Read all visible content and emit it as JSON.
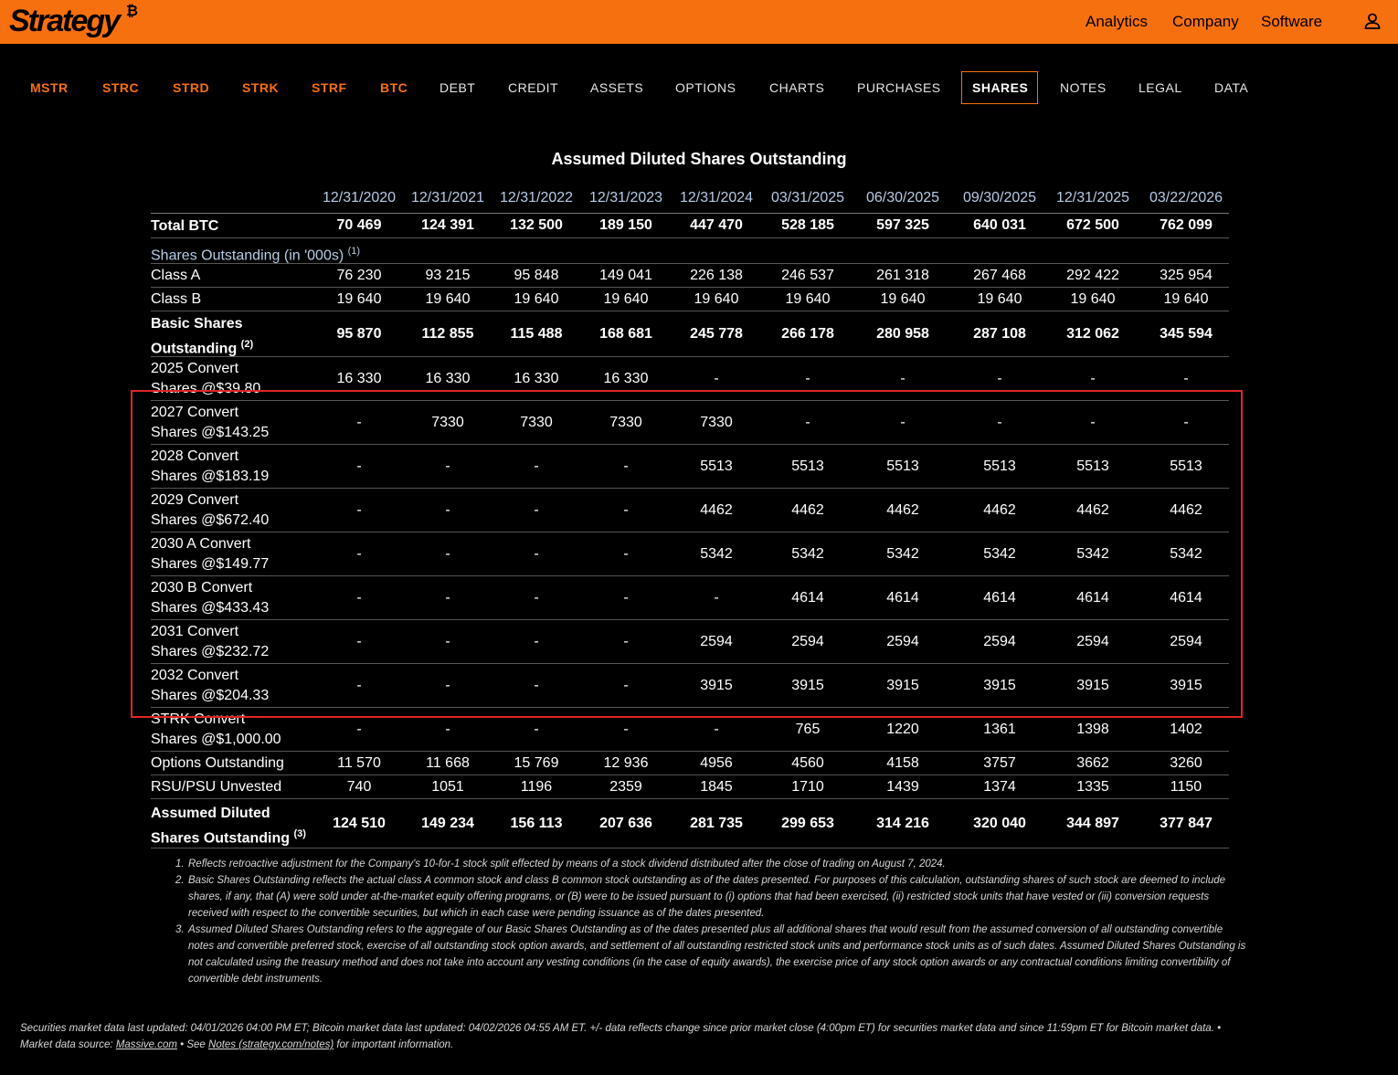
{
  "header": {
    "logo_text": "Strategy",
    "logo_symbol": "₿",
    "nav": [
      "Analytics",
      "Company",
      "Software"
    ],
    "user_icon": "user-icon",
    "brand_color": "#f7700f"
  },
  "tabs": [
    {
      "label": "MSTR",
      "style": "orange"
    },
    {
      "label": "STRC",
      "style": "orange"
    },
    {
      "label": "STRD",
      "style": "orange"
    },
    {
      "label": "STRK",
      "style": "orange"
    },
    {
      "label": "STRF",
      "style": "orange"
    },
    {
      "label": "BTC",
      "style": "orange"
    },
    {
      "label": "DEBT",
      "style": "plain"
    },
    {
      "label": "CREDIT",
      "style": "plain"
    },
    {
      "label": "ASSETS",
      "style": "plain"
    },
    {
      "label": "OPTIONS",
      "style": "plain"
    },
    {
      "label": "CHARTS",
      "style": "plain"
    },
    {
      "label": "PURCHASES",
      "style": "plain"
    },
    {
      "label": "SHARES",
      "style": "active"
    },
    {
      "label": "NOTES",
      "style": "plain"
    },
    {
      "label": "LEGAL",
      "style": "plain"
    },
    {
      "label": "DATA",
      "style": "plain"
    }
  ],
  "table": {
    "title": "Assumed Diluted Shares Outstanding",
    "columns": [
      "12/31/2020",
      "12/31/2021",
      "12/31/2022",
      "12/31/2023",
      "12/31/2024",
      "03/31/2025",
      "06/30/2025",
      "09/30/2025",
      "12/31/2025",
      "03/22/2026"
    ],
    "rows": [
      {
        "label": "Total BTC",
        "bold": true,
        "values": [
          "70 469",
          "124 391",
          "132 500",
          "189 150",
          "447 470",
          "528 185",
          "597 325",
          "640 031",
          "672 500",
          "762 099"
        ]
      },
      {
        "label": "Shares Outstanding (in '000s)",
        "sup": "(1)",
        "section": true,
        "values": []
      },
      {
        "label": "Class A",
        "values": [
          "76 230",
          "93 215",
          "95 848",
          "149 041",
          "226 138",
          "246 537",
          "261 318",
          "267 468",
          "292 422",
          "325 954"
        ]
      },
      {
        "label": "Class B",
        "values": [
          "19 640",
          "19 640",
          "19 640",
          "19 640",
          "19 640",
          "19 640",
          "19 640",
          "19 640",
          "19 640",
          "19 640"
        ]
      },
      {
        "label": "Basic Shares",
        "label2": "Outstanding",
        "sup": "(2)",
        "bold": true,
        "values": [
          "95 870",
          "112 855",
          "115 488",
          "168 681",
          "245 778",
          "266 178",
          "280 958",
          "287 108",
          "312 062",
          "345 594"
        ]
      },
      {
        "label": "2025 Convert",
        "label2": "Shares @$39.80",
        "values": [
          "16 330",
          "16 330",
          "16 330",
          "16 330",
          "-",
          "-",
          "-",
          "-",
          "-",
          "-"
        ]
      },
      {
        "label": "2027 Convert",
        "label2": "Shares @$143.25",
        "values": [
          "-",
          "7330",
          "7330",
          "7330",
          "7330",
          "-",
          "-",
          "-",
          "-",
          "-"
        ]
      },
      {
        "label": "2028 Convert",
        "label2": "Shares @$183.19",
        "values": [
          "-",
          "-",
          "-",
          "-",
          "5513",
          "5513",
          "5513",
          "5513",
          "5513",
          "5513"
        ]
      },
      {
        "label": "2029 Convert",
        "label2": "Shares @$672.40",
        "values": [
          "-",
          "-",
          "-",
          "-",
          "4462",
          "4462",
          "4462",
          "4462",
          "4462",
          "4462"
        ]
      },
      {
        "label": "2030 A Convert",
        "label2": "Shares @$149.77",
        "values": [
          "-",
          "-",
          "-",
          "-",
          "5342",
          "5342",
          "5342",
          "5342",
          "5342",
          "5342"
        ]
      },
      {
        "label": "2030 B Convert",
        "label2": "Shares @$433.43",
        "values": [
          "-",
          "-",
          "-",
          "-",
          "-",
          "4614",
          "4614",
          "4614",
          "4614",
          "4614"
        ]
      },
      {
        "label": "2031 Convert",
        "label2": "Shares @$232.72",
        "values": [
          "-",
          "-",
          "-",
          "-",
          "2594",
          "2594",
          "2594",
          "2594",
          "2594",
          "2594"
        ]
      },
      {
        "label": "2032 Convert",
        "label2": "Shares @$204.33",
        "values": [
          "-",
          "-",
          "-",
          "-",
          "3915",
          "3915",
          "3915",
          "3915",
          "3915",
          "3915"
        ]
      },
      {
        "label": "STRK Convert",
        "label2": "Shares @$1,000.00",
        "values": [
          "-",
          "-",
          "-",
          "-",
          "-",
          "765",
          "1220",
          "1361",
          "1398",
          "1402"
        ]
      },
      {
        "label": "Options Outstanding",
        "values": [
          "11 570",
          "11 668",
          "15 769",
          "12 936",
          "4956",
          "4560",
          "4158",
          "3757",
          "3662",
          "3260"
        ]
      },
      {
        "label": "RSU/PSU Unvested",
        "values": [
          "740",
          "1051",
          "1196",
          "2359",
          "1845",
          "1710",
          "1439",
          "1374",
          "1335",
          "1150"
        ]
      },
      {
        "label": "Assumed Diluted",
        "label2": "Shares Outstanding",
        "sup": "(3)",
        "bold": true,
        "values": [
          "124 510",
          "149 234",
          "156 113",
          "207 636",
          "281 735",
          "299 653",
          "314 216",
          "320 040",
          "344 897",
          "377 847"
        ]
      }
    ]
  },
  "footnotes": [
    {
      "num": "1.",
      "text": "Reflects retroactive adjustment for the Company's 10-for-1 stock split effected by means of a stock dividend distributed after the close of trading on August 7, 2024."
    },
    {
      "num": "2.",
      "text": "Basic Shares Outstanding reflects the actual class A common stock and class B common stock outstanding as of the dates presented. For purposes of this calculation, outstanding shares of such stock are deemed to include shares, if any, that (A) were sold under at-the-market equity offering programs, or (B) were to be issued pursuant to (i) options that had been exercised, (ii) restricted stock units that have vested or (iii) conversion requests received with respect to the convertible securities, but which in each case were pending issuance as of the dates presented."
    },
    {
      "num": "3.",
      "text": "Assumed Diluted Shares Outstanding refers to the aggregate of our Basic Shares Outstanding as of the dates presented plus all additional shares that would result from the assumed conversion of all outstanding convertible notes and convertible preferred stock, exercise of all outstanding stock option awards, and settlement of all outstanding restricted stock units and performance stock units as of such dates. Assumed Diluted Shares Outstanding is not calculated using the treasury method and does not take into account any vesting conditions (in the case of equity awards), the exercise price of any stock option awards or any contractual conditions limiting convertibility of convertible debt instruments."
    }
  ],
  "footer": {
    "line1": "Securities market data last updated: 04/01/2026 04:00 PM ET; Bitcoin market data last updated: 04/02/2026 04:55 AM ET. +/- data reflects change since prior market close (4:00pm ET) for securities market data and since 11:59pm ET for Bitcoin market data.  •",
    "line2_prefix": "Market data source: ",
    "source_link": "Massive.com",
    "line2_mid": "  •  See ",
    "notes_link": "Notes (strategy.com/notes)",
    "line2_suffix": " for important information."
  }
}
